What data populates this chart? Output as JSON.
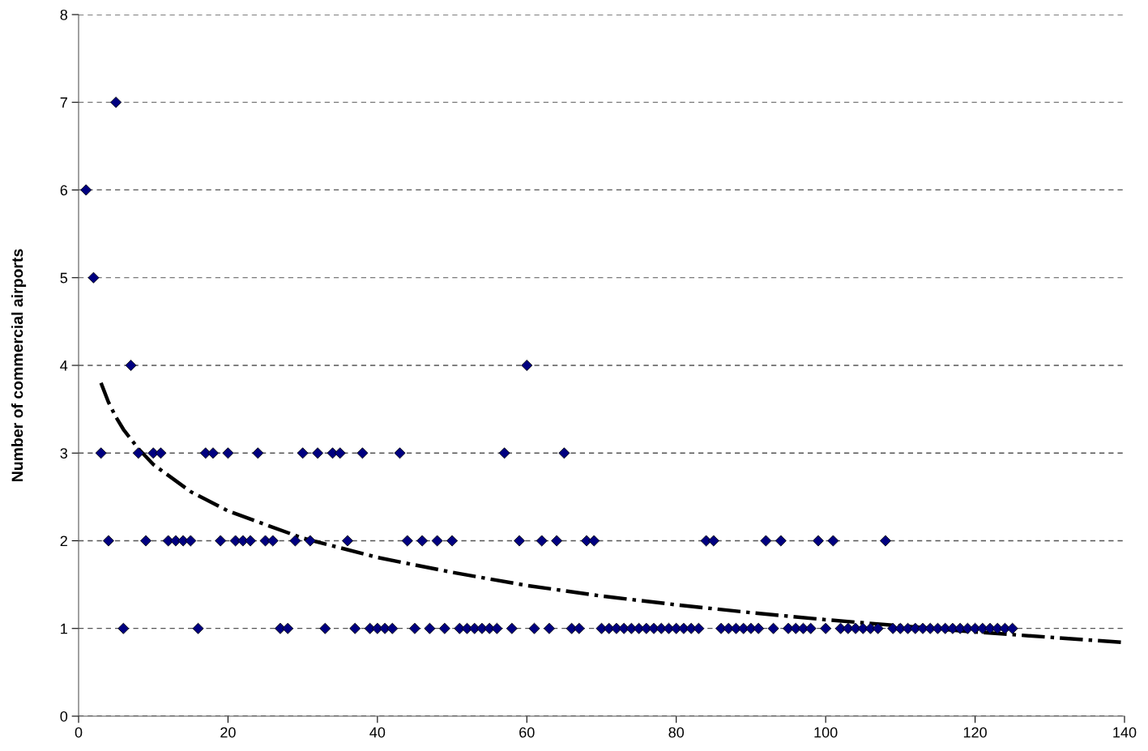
{
  "chart_data": {
    "type": "scatter",
    "ylabel": "Number of commercial airports",
    "xlim": [
      0,
      140
    ],
    "xticks": [
      0,
      20,
      40,
      60,
      80,
      100,
      120,
      140
    ],
    "ylim": [
      0,
      8
    ],
    "yticks": [
      0,
      1,
      2,
      3,
      4,
      5,
      6,
      7,
      8
    ],
    "grid": "y",
    "series": [
      {
        "color": "#000080",
        "marker": "diamond",
        "x": [
          1,
          2,
          3,
          4,
          5,
          6,
          7,
          8,
          9,
          10,
          11,
          12,
          13,
          14,
          15,
          16,
          17,
          18,
          19,
          20,
          21,
          22,
          23,
          24,
          25,
          26,
          27,
          28,
          29,
          30,
          31,
          32,
          33,
          34,
          35,
          36,
          37,
          38,
          39,
          40,
          41,
          42,
          43,
          44,
          45,
          46,
          47,
          48,
          49,
          50,
          51,
          52,
          53,
          54,
          55,
          56,
          57,
          58,
          59,
          60,
          61,
          62,
          63,
          64,
          65,
          66,
          67,
          68,
          69,
          70,
          71,
          72,
          73,
          74,
          75,
          76,
          77,
          78,
          79,
          80,
          81,
          82,
          83,
          84,
          85,
          86,
          87,
          88,
          89,
          90,
          91,
          92,
          93,
          94,
          95,
          96,
          97,
          98,
          99,
          100,
          101,
          102,
          103,
          104,
          105,
          106,
          107,
          108,
          109,
          110,
          111,
          112,
          113,
          114,
          115,
          116,
          117,
          118,
          119,
          120,
          121,
          122,
          123,
          124,
          125
        ],
        "values": [
          6,
          5,
          3,
          2,
          7,
          1,
          4,
          3,
          2,
          3,
          3,
          2,
          2,
          2,
          2,
          1,
          3,
          3,
          2,
          3,
          2,
          2,
          2,
          3,
          2,
          2,
          1,
          1,
          2,
          3,
          2,
          3,
          1,
          3,
          3,
          2,
          1,
          3,
          1,
          1,
          1,
          1,
          3,
          2,
          1,
          2,
          1,
          2,
          1,
          2,
          1,
          1,
          1,
          1,
          1,
          1,
          3,
          1,
          2,
          4,
          1,
          2,
          1,
          2,
          3,
          1,
          1,
          2,
          2,
          1,
          1,
          1,
          1,
          1,
          1,
          1,
          1,
          1,
          1,
          1,
          1,
          1,
          1,
          2,
          2,
          1,
          1,
          1,
          1,
          1,
          1,
          2,
          1,
          2,
          1,
          1,
          1,
          1,
          2,
          1,
          2,
          1,
          1,
          1,
          1,
          1,
          1,
          2,
          1,
          1,
          1,
          1,
          1,
          1,
          1,
          1,
          1,
          1,
          1,
          1,
          1,
          1,
          1,
          1,
          1
        ]
      },
      {
        "type": "line",
        "color": "#000000",
        "line_style": "dashdot",
        "marker": "none",
        "x": [
          3,
          4,
          5,
          6,
          8,
          10,
          15,
          20,
          30,
          40,
          50,
          60,
          70,
          80,
          90,
          100,
          110,
          120,
          130,
          140
        ],
        "values": [
          3.8,
          3.58,
          3.41,
          3.27,
          3.05,
          2.87,
          2.56,
          2.34,
          2.03,
          1.81,
          1.64,
          1.49,
          1.37,
          1.27,
          1.18,
          1.1,
          1.03,
          0.96,
          0.9,
          0.84
        ]
      }
    ]
  }
}
